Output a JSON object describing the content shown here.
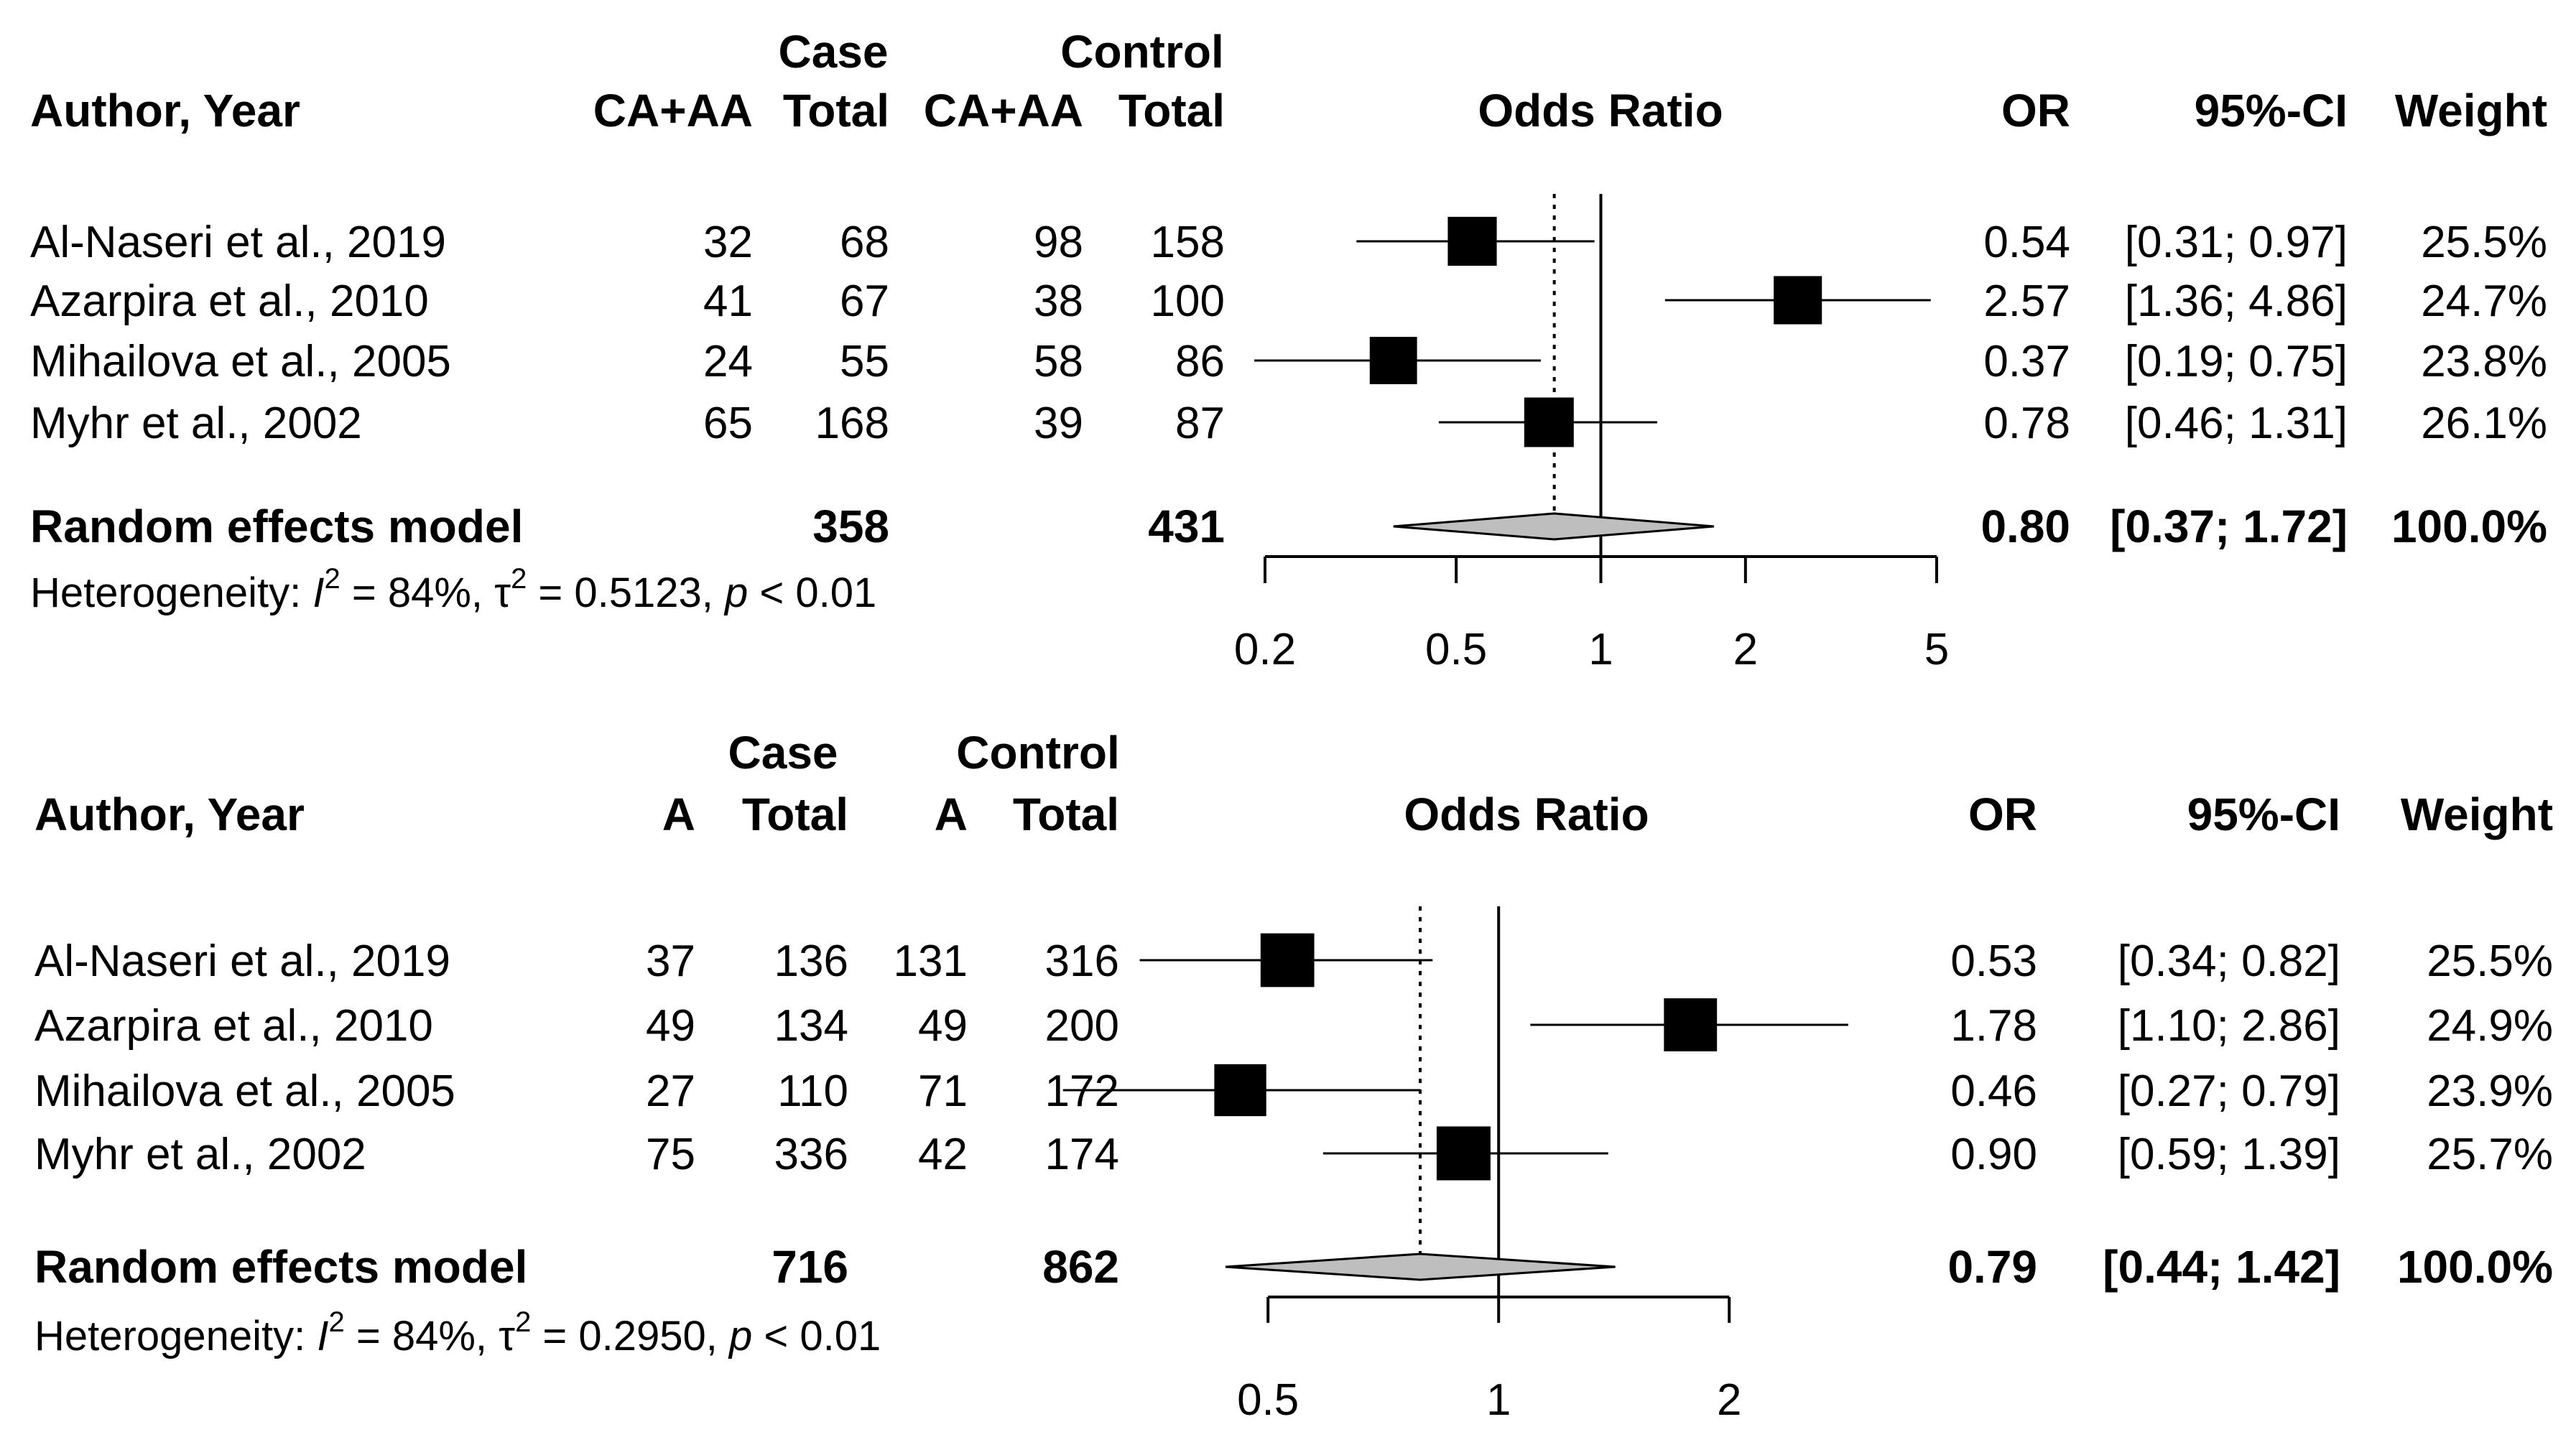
{
  "colors": {
    "ink": "#000000",
    "diamond_fill": "#bebebe",
    "background": "#ffffff"
  },
  "chart_data": [
    {
      "type": "forest",
      "x_scale": "log",
      "x_ticks": [
        0.2,
        0.5,
        1,
        2,
        5
      ],
      "x_tick_labels": [
        "0.2",
        "0.5",
        "1",
        "2",
        "5"
      ],
      "reference_line": 1,
      "pooled_line": 0.8,
      "headers": {
        "author": "Author, Year",
        "case": "Case",
        "control": "Control",
        "case_events": "CA+AA",
        "case_total": "Total",
        "control_events": "CA+AA",
        "control_total": "Total",
        "plot": "Odds Ratio",
        "or": "OR",
        "ci": "95%-CI",
        "weight": "Weight"
      },
      "studies": [
        {
          "author": "Al-Naseri et al., 2019",
          "case_events": "32",
          "case_total": "68",
          "control_events": "98",
          "control_total": "158",
          "or_text": "0.54",
          "ci_text": "[0.31; 0.97]",
          "weight_text": "25.5%",
          "or": 0.54,
          "lo": 0.31,
          "hi": 0.97,
          "weight": 25.5
        },
        {
          "author": "Azarpira et al., 2010",
          "case_events": "41",
          "case_total": "67",
          "control_events": "38",
          "control_total": "100",
          "or_text": "2.57",
          "ci_text": "[1.36; 4.86]",
          "weight_text": "24.7%",
          "or": 2.57,
          "lo": 1.36,
          "hi": 4.86,
          "weight": 24.7
        },
        {
          "author": "Mihailova et al., 2005",
          "case_events": "24",
          "case_total": "55",
          "control_events": "58",
          "control_total": "86",
          "or_text": "0.37",
          "ci_text": "[0.19; 0.75]",
          "weight_text": "23.8%",
          "or": 0.37,
          "lo": 0.19,
          "hi": 0.75,
          "weight": 23.8
        },
        {
          "author": "Myhr et al., 2002",
          "case_events": "65",
          "case_total": "168",
          "control_events": "39",
          "control_total": "87",
          "or_text": "0.78",
          "ci_text": "[0.46; 1.31]",
          "weight_text": "26.1%",
          "or": 0.78,
          "lo": 0.46,
          "hi": 1.31,
          "weight": 26.1
        }
      ],
      "pooled": {
        "label": "Random effects model",
        "case_total": "358",
        "control_total": "431",
        "or_text": "0.80",
        "ci_text": "[0.37; 1.72]",
        "weight_text": "100.0%",
        "or": 0.8,
        "lo": 0.37,
        "hi": 1.72
      },
      "heterogeneity": {
        "prefix": "Heterogeneity: ",
        "i_symbol": "I",
        "i_sup": "2",
        "i_value": " = 84%, ",
        "tau_symbol": "τ",
        "tau_sup": "2",
        "tau_value": " = 0.5123, ",
        "p_symbol": "p",
        "p_value": " < 0.01"
      }
    },
    {
      "type": "forest",
      "x_scale": "log",
      "x_ticks": [
        0.5,
        1,
        2
      ],
      "x_tick_labels": [
        "0.5",
        "1",
        "2"
      ],
      "reference_line": 1,
      "pooled_line": 0.79,
      "headers": {
        "author": "Author, Year",
        "case": "Case",
        "control": "Control",
        "case_events": "A",
        "case_total": "Total",
        "control_events": "A",
        "control_total": "Total",
        "plot": "Odds Ratio",
        "or": "OR",
        "ci": "95%-CI",
        "weight": "Weight"
      },
      "studies": [
        {
          "author": "Al-Naseri et al., 2019",
          "case_events": "37",
          "case_total": "136",
          "control_events": "131",
          "control_total": "316",
          "or_text": "0.53",
          "ci_text": "[0.34; 0.82]",
          "weight_text": "25.5%",
          "or": 0.53,
          "lo": 0.34,
          "hi": 0.82,
          "weight": 25.5
        },
        {
          "author": "Azarpira et al., 2010",
          "case_events": "49",
          "case_total": "134",
          "control_events": "49",
          "control_total": "200",
          "or_text": "1.78",
          "ci_text": "[1.10; 2.86]",
          "weight_text": "24.9%",
          "or": 1.78,
          "lo": 1.1,
          "hi": 2.86,
          "weight": 24.9
        },
        {
          "author": "Mihailova et al., 2005",
          "case_events": "27",
          "case_total": "110",
          "control_events": "71",
          "control_total": "172",
          "or_text": "0.46",
          "ci_text": "[0.27; 0.79]",
          "weight_text": "23.9%",
          "or": 0.46,
          "lo": 0.27,
          "hi": 0.79,
          "weight": 23.9
        },
        {
          "author": "Myhr et al., 2002",
          "case_events": "75",
          "case_total": "336",
          "control_events": "42",
          "control_total": "174",
          "or_text": "0.90",
          "ci_text": "[0.59; 1.39]",
          "weight_text": "25.7%",
          "or": 0.9,
          "lo": 0.59,
          "hi": 1.39,
          "weight": 25.7
        }
      ],
      "pooled": {
        "label": "Random effects model",
        "case_total": "716",
        "control_total": "862",
        "or_text": "0.79",
        "ci_text": "[0.44; 1.42]",
        "weight_text": "100.0%",
        "or": 0.79,
        "lo": 0.44,
        "hi": 1.42
      },
      "heterogeneity": {
        "prefix": "Heterogeneity: ",
        "i_symbol": "I",
        "i_sup": "2",
        "i_value": " = 84%, ",
        "tau_symbol": "τ",
        "tau_sup": "2",
        "tau_value": " = 0.2950, ",
        "p_symbol": "p",
        "p_value": " < 0.01"
      }
    }
  ]
}
